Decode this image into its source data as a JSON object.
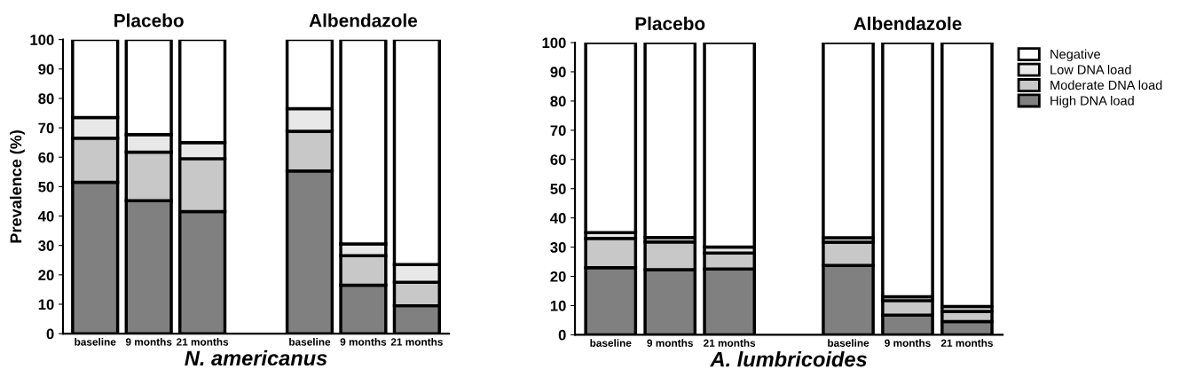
{
  "chart_data": [
    {
      "type": "bar",
      "stacked": true,
      "xlabel": "N. americanus",
      "ylabel": "Prevalence (%)",
      "annotations": [
        "Placebo",
        "Albendazole"
      ],
      "categories": [
        "baseline",
        "9 months",
        "21 months",
        null,
        "baseline",
        "9 months",
        "21 months"
      ],
      "ylim": [
        0,
        100
      ],
      "yticks": [
        0,
        10,
        20,
        30,
        40,
        50,
        60,
        70,
        80,
        90,
        100
      ],
      "grid": false,
      "legend": false,
      "series": [
        {
          "color": "#808080",
          "values": [
            51.5,
            45.2,
            41.5,
            null,
            55.3,
            16.5,
            9.5
          ]
        },
        {
          "color": "#c8c8c8",
          "values": [
            15,
            16.5,
            18,
            null,
            13.5,
            10,
            8
          ]
        },
        {
          "color": "#e8e8e8",
          "values": [
            7,
            6,
            5.5,
            null,
            7.7,
            4,
            6
          ]
        },
        {
          "color": "#ffffff",
          "values": [
            26.5,
            32.3,
            35,
            null,
            23.5,
            69.5,
            76.5
          ]
        }
      ]
    },
    {
      "type": "bar",
      "stacked": true,
      "xlabel": "A. lumbricoides",
      "annotations": [
        "Placebo",
        "Albendazole"
      ],
      "categories": [
        "baseline",
        "9 months",
        "21 months",
        null,
        "baseline",
        "9 months",
        "21 months"
      ],
      "ylim": [
        0,
        100
      ],
      "yticks": [
        0,
        10,
        20,
        30,
        40,
        50,
        60,
        70,
        80,
        90,
        100
      ],
      "grid": false,
      "legend": "top right",
      "series": [
        {
          "name": "High DNA load",
          "color": "#808080",
          "values": [
            23,
            22.3,
            22.5,
            null,
            23.7,
            6.7,
            4.5
          ]
        },
        {
          "name": "Moderate DNA load",
          "color": "#c8c8c8",
          "values": [
            10,
            9.5,
            5.5,
            null,
            8,
            5,
            3.5
          ]
        },
        {
          "name": "Low DNA load",
          "color": "#e8e8e8",
          "values": [
            2,
            1.5,
            2,
            null,
            1.5,
            1.3,
            1.7
          ]
        },
        {
          "name": "Negative",
          "color": "#ffffff",
          "values": [
            65,
            66.7,
            70,
            null,
            66.8,
            87,
            90.3
          ]
        }
      ]
    }
  ]
}
